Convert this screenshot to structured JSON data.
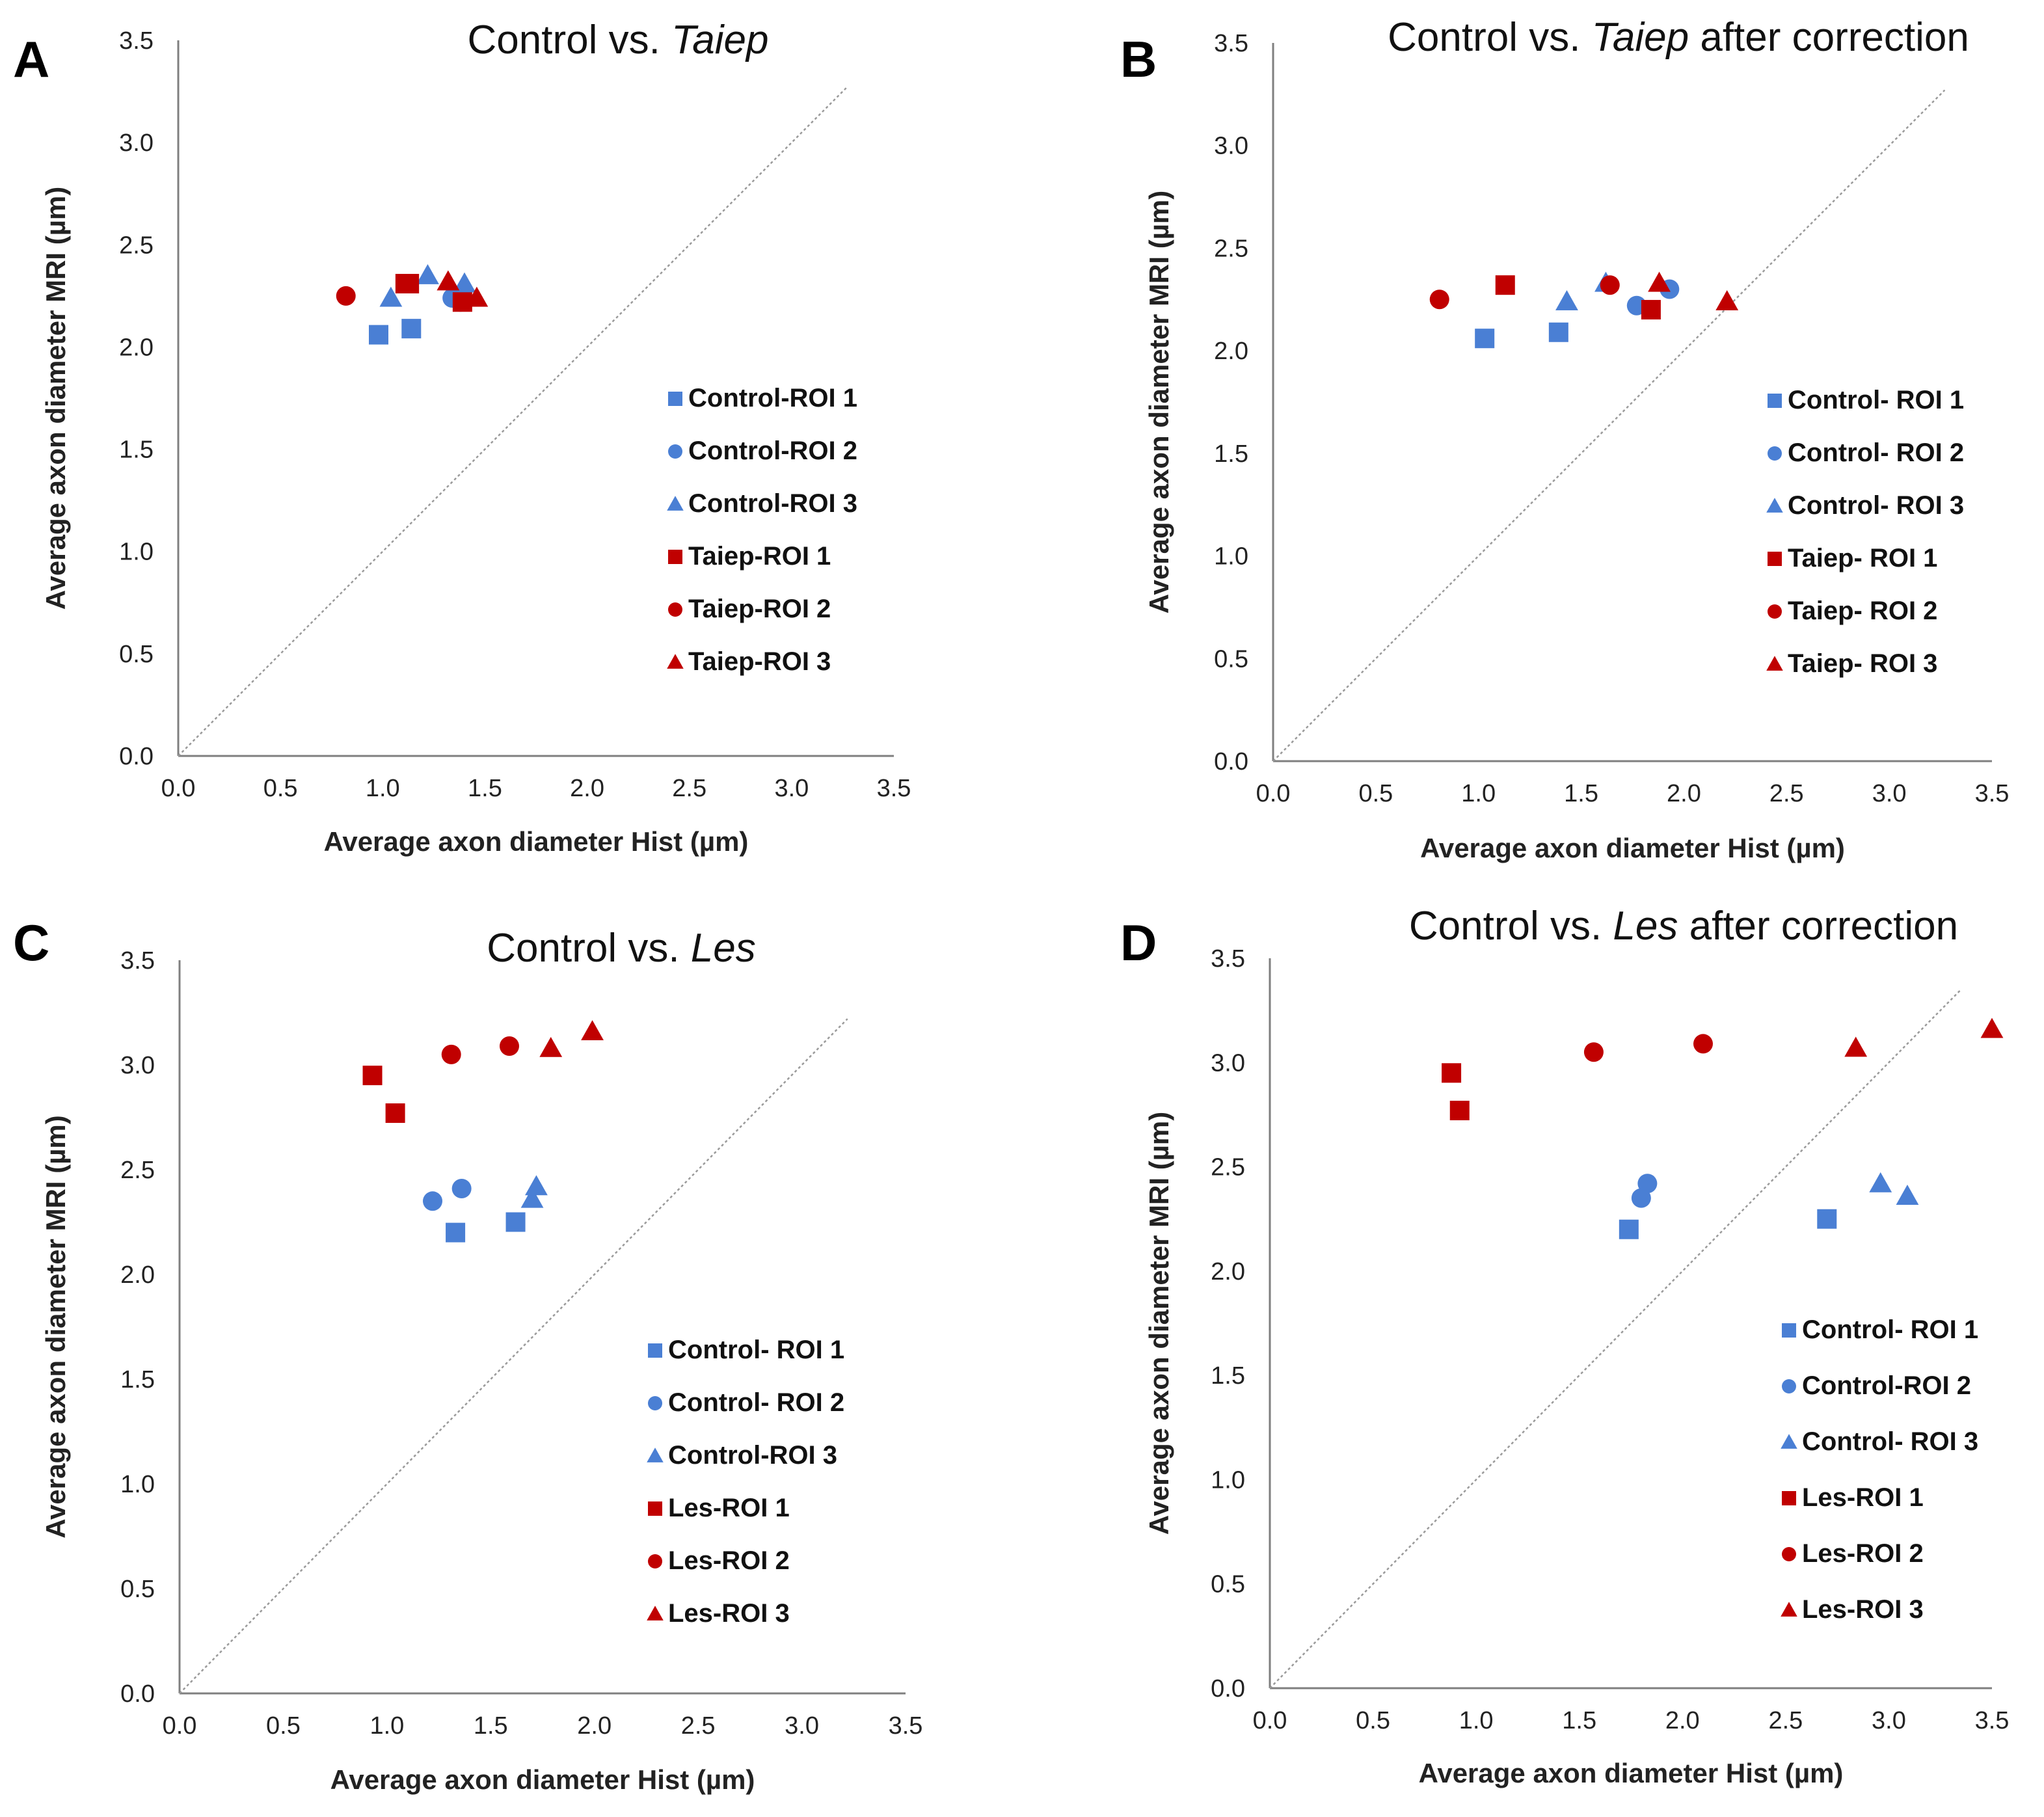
{
  "colors": {
    "control": "#4a7fd4",
    "taiep": "#c00000",
    "axis": "#7f7f7f",
    "diagonal": "#9a9a9a"
  },
  "chart_data": [
    {
      "panel": "A",
      "type": "scatter",
      "title_main": "Control vs. ",
      "title_italic": "Taiep",
      "title_tail": "",
      "xlabel": "Average axon diameter Hist (µm)",
      "ylabel": "Average axon diameter MRI (µm)",
      "xlim": [
        0,
        3.5
      ],
      "ylim": [
        0,
        3.5
      ],
      "xticks": [
        "0.0",
        "0.5",
        "1.0",
        "1.5",
        "2.0",
        "2.5",
        "3.0",
        "3.5"
      ],
      "yticks": [
        "0.0",
        "0.5",
        "1.0",
        "1.5",
        "2.0",
        "2.5",
        "3.0",
        "3.5"
      ],
      "identity_line": [
        0,
        3.27
      ],
      "series": [
        {
          "name": "Control-ROI 1",
          "group": "control",
          "marker": "square",
          "x": [
            0.98,
            1.14
          ],
          "y": [
            2.06,
            2.09
          ]
        },
        {
          "name": "Control-ROI 2",
          "group": "control",
          "marker": "circle",
          "x": [
            1.34,
            1.38
          ],
          "y": [
            2.24,
            2.22
          ]
        },
        {
          "name": "Control-ROI 3",
          "group": "control",
          "marker": "triangle",
          "x": [
            1.04,
            1.22,
            1.4
          ],
          "y": [
            2.24,
            2.35,
            2.31
          ]
        },
        {
          "name": "Taiep-ROI 1",
          "group": "taiep",
          "marker": "square",
          "x": [
            1.11,
            1.13,
            1.39
          ],
          "y": [
            2.31,
            2.31,
            2.22
          ]
        },
        {
          "name": "Taiep-ROI 2",
          "group": "taiep",
          "marker": "circle",
          "x": [
            0.82
          ],
          "y": [
            2.25
          ]
        },
        {
          "name": "Taiep-ROI 3",
          "group": "taiep",
          "marker": "triangle",
          "x": [
            1.32,
            1.46
          ],
          "y": [
            2.32,
            2.24
          ]
        }
      ]
    },
    {
      "panel": "B",
      "type": "scatter",
      "title_main": "Control vs. ",
      "title_italic": "Taiep",
      "title_tail": " after correction",
      "xlabel": "Average axon diameter Hist (µm)",
      "ylabel": "Average axon diameter MRI (µm)",
      "xlim": [
        0,
        3.5
      ],
      "ylim": [
        0,
        3.5
      ],
      "xticks": [
        "0.0",
        "0.5",
        "1.0",
        "1.5",
        "2.0",
        "2.5",
        "3.0",
        "3.5"
      ],
      "yticks": [
        "0.0",
        "0.5",
        "1.0",
        "1.5",
        "2.0",
        "2.5",
        "3.0",
        "3.5"
      ],
      "identity_line": [
        0,
        3.27
      ],
      "series": [
        {
          "name": "Control- ROI 1",
          "group": "control",
          "marker": "square",
          "x": [
            1.03,
            1.39
          ],
          "y": [
            2.06,
            2.09
          ]
        },
        {
          "name": "Control- ROI 2",
          "group": "control",
          "marker": "circle",
          "x": [
            1.77,
            1.93
          ],
          "y": [
            2.22,
            2.3
          ]
        },
        {
          "name": "Control- ROI 3",
          "group": "control",
          "marker": "triangle",
          "x": [
            1.43,
            1.62
          ],
          "y": [
            2.24,
            2.33
          ]
        },
        {
          "name": "Taiep- ROI 1",
          "group": "taiep",
          "marker": "square",
          "x": [
            1.13,
            1.84
          ],
          "y": [
            2.32,
            2.2
          ]
        },
        {
          "name": "Taiep- ROI 2",
          "group": "taiep",
          "marker": "circle",
          "x": [
            0.81,
            1.64
          ],
          "y": [
            2.25,
            2.32
          ]
        },
        {
          "name": "Taiep- ROI 3",
          "group": "taiep",
          "marker": "triangle",
          "x": [
            1.88,
            2.21
          ],
          "y": [
            2.33,
            2.24
          ]
        }
      ]
    },
    {
      "panel": "C",
      "type": "scatter",
      "title_main": "Control vs. ",
      "title_italic": "Les",
      "title_tail": "",
      "xlabel": "Average axon diameter Hist (µm)",
      "ylabel": "Average axon diameter MRI (µm)",
      "xlim": [
        0,
        3.5
      ],
      "ylim": [
        0,
        3.5
      ],
      "xticks": [
        "0.0",
        "0.5",
        "1.0",
        "1.5",
        "2.0",
        "2.5",
        "3.0",
        "3.5"
      ],
      "yticks": [
        "0.0",
        "0.5",
        "1.0",
        "1.5",
        "2.0",
        "2.5",
        "3.0",
        "3.5"
      ],
      "identity_line": [
        0,
        3.22
      ],
      "series": [
        {
          "name": "Control- ROI 1",
          "group": "control",
          "marker": "square",
          "x": [
            1.33,
            1.62
          ],
          "y": [
            2.2,
            2.25
          ]
        },
        {
          "name": "Control- ROI 2",
          "group": "control",
          "marker": "circle",
          "x": [
            1.22,
            1.36
          ],
          "y": [
            2.35,
            2.41
          ]
        },
        {
          "name": "Control-ROI 3",
          "group": "control",
          "marker": "triangle",
          "x": [
            1.7,
            1.72
          ],
          "y": [
            2.36,
            2.42
          ]
        },
        {
          "name": "Les-ROI 1",
          "group": "taiep",
          "marker": "square",
          "x": [
            0.93,
            1.04
          ],
          "y": [
            2.95,
            2.77
          ]
        },
        {
          "name": "Les-ROI 2",
          "group": "taiep",
          "marker": "circle",
          "x": [
            1.31,
            1.59
          ],
          "y": [
            3.05,
            3.09
          ]
        },
        {
          "name": "Les-ROI 3",
          "group": "taiep",
          "marker": "triangle",
          "x": [
            1.79,
            1.99
          ],
          "y": [
            3.08,
            3.16
          ]
        }
      ]
    },
    {
      "panel": "D",
      "type": "scatter",
      "title_main": "Control vs. ",
      "title_italic": "Les",
      "title_tail": " after correction",
      "xlabel": "Average axon diameter Hist (µm)",
      "ylabel": "Average axon diameter MRI (µm)",
      "xlim": [
        0,
        3.5
      ],
      "ylim": [
        0,
        3.5
      ],
      "xticks": [
        "0.0",
        "0.5",
        "1.0",
        "1.5",
        "2.0",
        "2.5",
        "3.0",
        "3.5"
      ],
      "yticks": [
        "0.0",
        "0.5",
        "1.0",
        "1.5",
        "2.0",
        "2.5",
        "3.0",
        "3.5"
      ],
      "identity_line": [
        0,
        3.35
      ],
      "series": [
        {
          "name": "Control- ROI 1",
          "group": "control",
          "marker": "square",
          "x": [
            1.74,
            2.7
          ],
          "y": [
            2.2,
            2.25
          ]
        },
        {
          "name": "Control-ROI 2",
          "group": "control",
          "marker": "circle",
          "x": [
            1.8,
            1.83
          ],
          "y": [
            2.35,
            2.42
          ]
        },
        {
          "name": "Control- ROI 3",
          "group": "control",
          "marker": "triangle",
          "x": [
            2.96,
            3.09
          ],
          "y": [
            2.42,
            2.36
          ]
        },
        {
          "name": "Les-ROI 1",
          "group": "taiep",
          "marker": "square",
          "x": [
            0.88,
            0.92
          ],
          "y": [
            2.95,
            2.77
          ]
        },
        {
          "name": "Les-ROI 2",
          "group": "taiep",
          "marker": "circle",
          "x": [
            1.57,
            2.1
          ],
          "y": [
            3.05,
            3.09
          ]
        },
        {
          "name": "Les-ROI 3",
          "group": "taiep",
          "marker": "triangle",
          "x": [
            2.84,
            3.5
          ],
          "y": [
            3.07,
            3.16
          ]
        }
      ]
    }
  ]
}
